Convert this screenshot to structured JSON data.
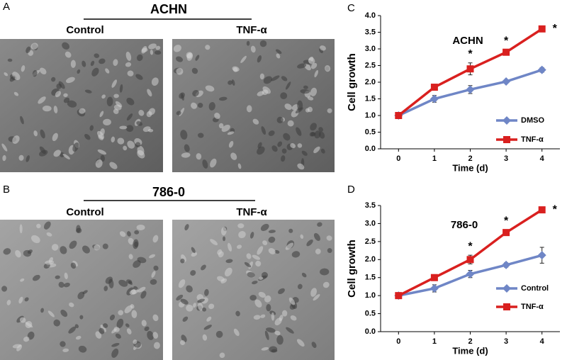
{
  "panels": [
    {
      "label": "A",
      "title": "ACHN",
      "images": [
        "Control",
        "TNF-α"
      ]
    },
    {
      "label": "B",
      "title": "786-0",
      "images": [
        "Control",
        "TNF-α"
      ]
    }
  ],
  "chart_data": [
    {
      "type": "line",
      "label": "C",
      "title": "ACHN",
      "xlabel": "Time (d)",
      "ylabel": "Cell growth",
      "x": [
        0,
        1,
        2,
        3,
        4
      ],
      "xlim": [
        -0.5,
        4.5
      ],
      "xticks": [
        0,
        1,
        2,
        3,
        4
      ],
      "ylim": [
        0,
        4
      ],
      "yticks": [
        {
          "value": 0,
          "label": "0.0"
        },
        0.5,
        {
          "value": 1,
          "label": "1.0"
        },
        1.5,
        {
          "value": 2,
          "label": "2.0"
        },
        2.5,
        {
          "value": 3,
          "label": "3.0"
        },
        3.5,
        {
          "value": 4,
          "label": "4.0"
        }
      ],
      "series": [
        {
          "name": "DMSO",
          "color": "#6f86c6",
          "marker": "diamond",
          "values": [
            1.0,
            1.5,
            1.78,
            2.02,
            2.37
          ],
          "errors": [
            0.03,
            0.1,
            0.12,
            0.04,
            0.07
          ]
        },
        {
          "name": "TNF-α",
          "color": "#d9201f",
          "marker": "square",
          "values": [
            1.0,
            1.85,
            2.4,
            2.9,
            3.6
          ],
          "errors": [
            0.03,
            0.08,
            0.18,
            0.07,
            0.03
          ]
        }
      ],
      "annotations": [
        {
          "text": "*",
          "x": 2
        },
        {
          "text": "*",
          "x": 3
        },
        {
          "text": "*",
          "x": 4
        }
      ]
    },
    {
      "type": "line",
      "label": "D",
      "title": "786-0",
      "xlabel": "Time (d)",
      "ylabel": "Cell growth",
      "x": [
        0,
        1,
        2,
        3,
        4
      ],
      "xlim": [
        -0.5,
        4.5
      ],
      "xticks": [
        0,
        1,
        2,
        3,
        4
      ],
      "ylim": [
        0,
        3.5
      ],
      "yticks": [
        {
          "value": 0,
          "label": "0.0"
        },
        0.5,
        {
          "value": 1,
          "label": "1.0"
        },
        1.5,
        {
          "value": 2,
          "label": "2.0"
        },
        2.5,
        {
          "value": 3,
          "label": "3.0"
        },
        3.5
      ],
      "series": [
        {
          "name": "Control",
          "color": "#6f86c6",
          "marker": "diamond",
          "values": [
            1.0,
            1.2,
            1.6,
            1.85,
            2.12
          ],
          "errors": [
            0.03,
            0.1,
            0.1,
            0.06,
            0.22
          ]
        },
        {
          "name": "TNF-α",
          "color": "#d9201f",
          "marker": "square",
          "values": [
            1.0,
            1.5,
            2.0,
            2.75,
            3.38
          ],
          "errors": [
            0.05,
            0.06,
            0.12,
            0.08,
            0.08
          ]
        }
      ],
      "annotations": [
        {
          "text": "*",
          "x": 2
        },
        {
          "text": "*",
          "x": 3
        },
        {
          "text": "*",
          "x": 4
        }
      ]
    }
  ]
}
